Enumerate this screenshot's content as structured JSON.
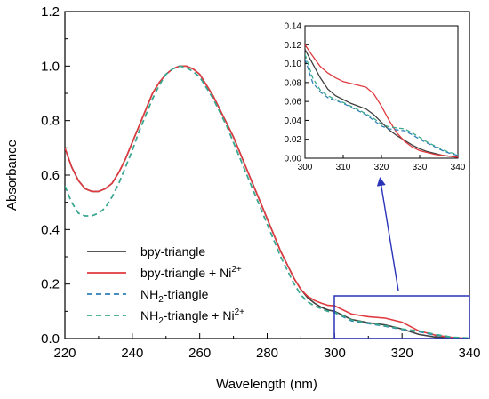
{
  "chart_data": [
    {
      "type": "line",
      "xlabel": "Wavelength (nm)",
      "ylabel": "Absorbance",
      "xlim": [
        220,
        340
      ],
      "ylim": [
        0.0,
        1.2
      ],
      "xticks": [
        "220",
        "240",
        "260",
        "280",
        "300",
        "320",
        "340"
      ],
      "yticks": [
        "0.0",
        "0.2",
        "0.4",
        "0.6",
        "0.8",
        "1.0",
        "1.2"
      ],
      "grid": false,
      "legend": "bottom-left",
      "series": [
        {
          "name": "bpy-triangle",
          "name_main": "bpy-triangle",
          "name_sup": "",
          "name_tail": "",
          "color": "#404040",
          "dash": "solid",
          "x": [
            220,
            222,
            224,
            226,
            228,
            230,
            232,
            234,
            236,
            238,
            240,
            242,
            244,
            246,
            248,
            250,
            252,
            254,
            256,
            258,
            260,
            262,
            264,
            266,
            268,
            270,
            272,
            274,
            276,
            278,
            280,
            282,
            284,
            286,
            288,
            290,
            292,
            294,
            296,
            298,
            300,
            305,
            310,
            315,
            320,
            325,
            330,
            335,
            340
          ],
          "y": [
            0.7,
            0.63,
            0.58,
            0.55,
            0.54,
            0.54,
            0.55,
            0.57,
            0.61,
            0.66,
            0.72,
            0.78,
            0.84,
            0.9,
            0.94,
            0.97,
            0.99,
            1.0,
            1.0,
            0.99,
            0.97,
            0.93,
            0.89,
            0.84,
            0.79,
            0.74,
            0.68,
            0.62,
            0.56,
            0.5,
            0.44,
            0.38,
            0.32,
            0.27,
            0.22,
            0.18,
            0.15,
            0.13,
            0.115,
            0.105,
            0.1,
            0.07,
            0.058,
            0.05,
            0.035,
            0.015,
            0.005,
            0.002,
            0.0
          ]
        },
        {
          "name": "bpy-triangle + Ni2+",
          "name_main": "bpy-triangle + Ni",
          "name_sup": "2+",
          "name_tail": "",
          "color": "#e0393e",
          "dash": "solid",
          "x": [
            220,
            222,
            224,
            226,
            228,
            230,
            232,
            234,
            236,
            238,
            240,
            242,
            244,
            246,
            248,
            250,
            252,
            254,
            256,
            258,
            260,
            262,
            264,
            266,
            268,
            270,
            272,
            274,
            276,
            278,
            280,
            282,
            284,
            286,
            288,
            290,
            292,
            294,
            296,
            298,
            300,
            305,
            310,
            315,
            320,
            325,
            330,
            335,
            340
          ],
          "y": [
            0.7,
            0.63,
            0.58,
            0.55,
            0.54,
            0.54,
            0.55,
            0.57,
            0.61,
            0.66,
            0.72,
            0.78,
            0.84,
            0.9,
            0.94,
            0.97,
            0.99,
            1.0,
            1.0,
            0.99,
            0.97,
            0.93,
            0.89,
            0.84,
            0.79,
            0.74,
            0.68,
            0.62,
            0.56,
            0.5,
            0.44,
            0.38,
            0.32,
            0.27,
            0.22,
            0.18,
            0.155,
            0.14,
            0.13,
            0.122,
            0.12,
            0.09,
            0.08,
            0.075,
            0.06,
            0.028,
            0.012,
            0.004,
            0.0
          ]
        },
        {
          "name": "NH2-triangle",
          "name_main": "NH",
          "name_sub": "2",
          "name_tail": "-triangle",
          "color": "#2f7fb8",
          "dash": "dashed",
          "x": [
            220,
            222,
            224,
            226,
            228,
            230,
            232,
            234,
            236,
            238,
            240,
            242,
            244,
            246,
            248,
            250,
            252,
            254,
            256,
            258,
            260,
            262,
            264,
            266,
            268,
            270,
            272,
            274,
            276,
            278,
            280,
            282,
            284,
            286,
            288,
            290,
            292,
            294,
            296,
            298,
            300,
            305,
            310,
            315,
            320,
            325,
            330,
            335,
            340
          ],
          "y": [
            0.56,
            0.5,
            0.46,
            0.45,
            0.45,
            0.46,
            0.48,
            0.52,
            0.57,
            0.63,
            0.69,
            0.76,
            0.82,
            0.88,
            0.93,
            0.97,
            0.99,
            1.0,
            0.995,
            0.98,
            0.96,
            0.92,
            0.88,
            0.83,
            0.78,
            0.72,
            0.66,
            0.6,
            0.54,
            0.48,
            0.42,
            0.36,
            0.3,
            0.25,
            0.2,
            0.16,
            0.135,
            0.12,
            0.11,
            0.1,
            0.095,
            0.065,
            0.055,
            0.045,
            0.033,
            0.025,
            0.012,
            0.004,
            0.001
          ]
        },
        {
          "name": "NH2-triangle + Ni2+",
          "name_main": "NH",
          "name_sub": "2",
          "name_tail": "-triangle + Ni",
          "name_sup": "2+",
          "color": "#3aaa8a",
          "dash": "dashed",
          "x": [
            220,
            222,
            224,
            226,
            228,
            230,
            232,
            234,
            236,
            238,
            240,
            242,
            244,
            246,
            248,
            250,
            252,
            254,
            256,
            258,
            260,
            262,
            264,
            266,
            268,
            270,
            272,
            274,
            276,
            278,
            280,
            282,
            284,
            286,
            288,
            290,
            292,
            294,
            296,
            298,
            300,
            305,
            310,
            315,
            320,
            325,
            330,
            335,
            340
          ],
          "y": [
            0.56,
            0.5,
            0.46,
            0.45,
            0.45,
            0.46,
            0.48,
            0.52,
            0.57,
            0.63,
            0.69,
            0.76,
            0.82,
            0.88,
            0.93,
            0.97,
            0.99,
            1.0,
            0.995,
            0.98,
            0.96,
            0.92,
            0.88,
            0.83,
            0.78,
            0.72,
            0.66,
            0.6,
            0.54,
            0.48,
            0.42,
            0.36,
            0.3,
            0.25,
            0.2,
            0.16,
            0.135,
            0.12,
            0.11,
            0.1,
            0.097,
            0.068,
            0.057,
            0.047,
            0.035,
            0.028,
            0.015,
            0.005,
            0.002
          ]
        }
      ]
    },
    {
      "type": "line",
      "role": "inset",
      "xlim": [
        300,
        340
      ],
      "ylim": [
        0.0,
        0.14
      ],
      "xticks": [
        "300",
        "310",
        "320",
        "330",
        "340"
      ],
      "yticks": [
        "0.00",
        "0.02",
        "0.04",
        "0.06",
        "0.08",
        "0.10",
        "0.12",
        "0.14"
      ],
      "grid": false,
      "series": [
        {
          "color": "#404040",
          "dash": "solid",
          "x": [
            300,
            302,
            304,
            306,
            308,
            310,
            312,
            314,
            316,
            318,
            320,
            322,
            324,
            326,
            328,
            330,
            332,
            334,
            336,
            338,
            340
          ],
          "y": [
            0.115,
            0.1,
            0.085,
            0.073,
            0.066,
            0.062,
            0.058,
            0.055,
            0.052,
            0.046,
            0.038,
            0.03,
            0.024,
            0.019,
            0.014,
            0.01,
            0.007,
            0.005,
            0.003,
            0.002,
            0.001
          ]
        },
        {
          "color": "#e0393e",
          "dash": "solid",
          "x": [
            300,
            302,
            304,
            306,
            308,
            310,
            312,
            314,
            316,
            318,
            320,
            322,
            324,
            326,
            328,
            330,
            332,
            334,
            336,
            338,
            340
          ],
          "y": [
            0.12,
            0.108,
            0.097,
            0.09,
            0.085,
            0.081,
            0.079,
            0.077,
            0.075,
            0.068,
            0.055,
            0.04,
            0.027,
            0.018,
            0.012,
            0.008,
            0.006,
            0.004,
            0.003,
            0.002,
            0.001
          ]
        },
        {
          "color": "#2f7fb8",
          "dash": "dashed",
          "x": [
            300,
            302,
            304,
            306,
            308,
            310,
            312,
            314,
            316,
            318,
            320,
            322,
            324,
            326,
            328,
            330,
            332,
            334,
            336,
            338,
            340
          ],
          "y": [
            0.105,
            0.08,
            0.07,
            0.064,
            0.061,
            0.058,
            0.054,
            0.05,
            0.046,
            0.04,
            0.034,
            0.031,
            0.03,
            0.029,
            0.025,
            0.02,
            0.016,
            0.012,
            0.008,
            0.005,
            0.003
          ]
        },
        {
          "color": "#3aaa8a",
          "dash": "dashed",
          "x": [
            300,
            302,
            304,
            306,
            308,
            310,
            312,
            314,
            316,
            318,
            320,
            322,
            324,
            326,
            328,
            330,
            332,
            334,
            336,
            338,
            340
          ],
          "y": [
            0.11,
            0.085,
            0.072,
            0.066,
            0.062,
            0.059,
            0.055,
            0.051,
            0.047,
            0.042,
            0.036,
            0.033,
            0.032,
            0.031,
            0.027,
            0.022,
            0.017,
            0.013,
            0.009,
            0.006,
            0.004
          ]
        }
      ]
    }
  ],
  "colors": {
    "zoom_box": "#2a34b8",
    "arrow": "#2a34b8",
    "axis": "#000000"
  }
}
